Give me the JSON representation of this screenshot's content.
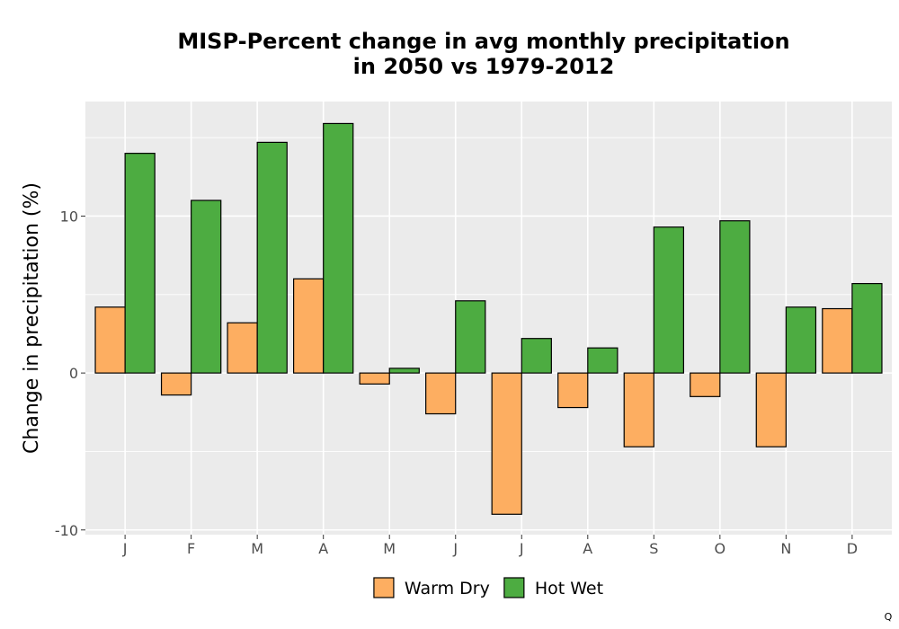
{
  "chart_data": {
    "type": "bar",
    "title_lines": [
      "MISP-Percent change in avg monthly precipitation",
      "in 2050 vs 1979-2012"
    ],
    "xlabel": "",
    "ylabel": "Change in precipitation (%)",
    "categories": [
      "J",
      "F",
      "M",
      "A",
      "M",
      "J",
      "J",
      "A",
      "S",
      "O",
      "N",
      "D"
    ],
    "series": [
      {
        "name": "Warm Dry",
        "color": "#FDAE61",
        "values": [
          4.2,
          -1.4,
          3.2,
          6.0,
          -0.7,
          -2.6,
          -9.0,
          -2.2,
          -4.7,
          -1.5,
          -4.7,
          4.1
        ]
      },
      {
        "name": "Hot Wet",
        "color": "#4DAC41",
        "values": [
          14.0,
          11.0,
          14.7,
          15.9,
          0.3,
          4.6,
          2.2,
          1.6,
          9.3,
          9.7,
          4.2,
          5.7
        ]
      }
    ],
    "ylim": [
      -10.3,
      17.3
    ],
    "yticks": [
      -10,
      0,
      10
    ],
    "grid": true,
    "panel_background": "#EBEBEB",
    "legend_position": "bottom"
  },
  "corner_note": "Q"
}
